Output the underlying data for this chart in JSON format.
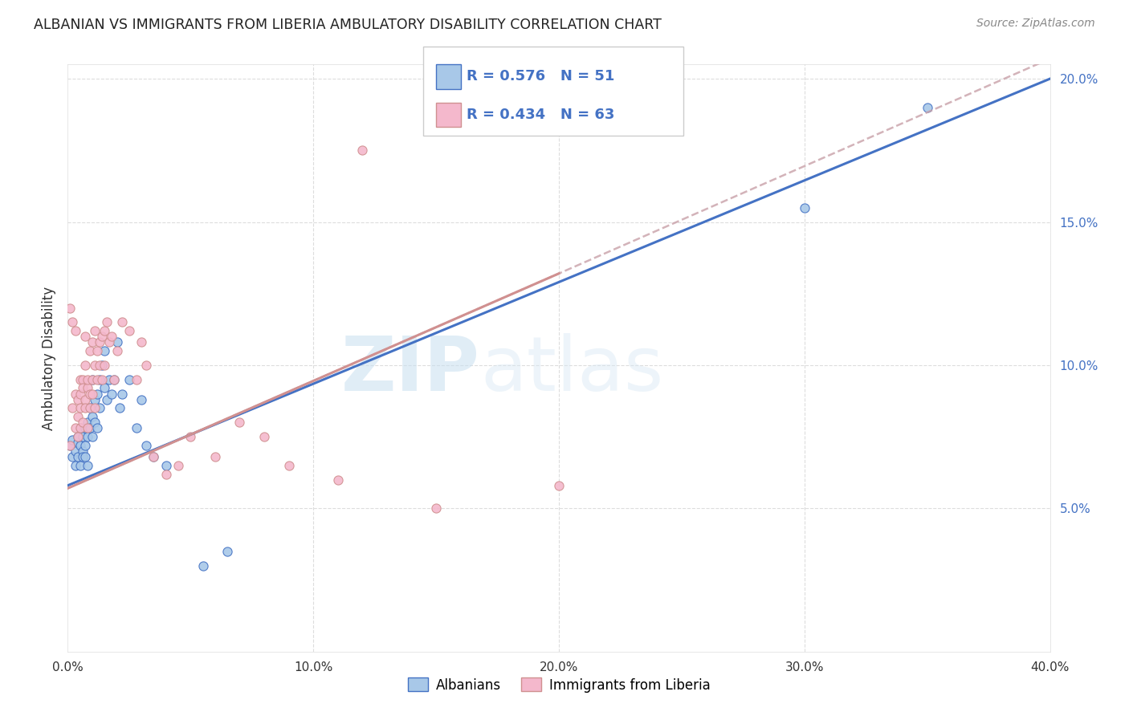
{
  "title": "ALBANIAN VS IMMIGRANTS FROM LIBERIA AMBULATORY DISABILITY CORRELATION CHART",
  "source": "Source: ZipAtlas.com",
  "xlabel_albanians": "Albanians",
  "xlabel_liberia": "Immigrants from Liberia",
  "ylabel": "Ambulatory Disability",
  "xlim": [
    0.0,
    0.4
  ],
  "ylim": [
    0.0,
    0.205
  ],
  "r_albanian": 0.576,
  "n_albanian": 51,
  "r_liberia": 0.434,
  "n_liberia": 63,
  "color_albanian": "#a8c8e8",
  "color_liberia": "#f4b8cc",
  "color_albanian_line": "#4472c4",
  "color_liberia_line": "#d09090",
  "line_albanian_slope": 0.355,
  "line_albanian_intercept": 0.058,
  "line_liberia_slope": 0.375,
  "line_liberia_intercept": 0.057,
  "watermark_zip": "ZIP",
  "watermark_atlas": "atlas",
  "albanian_x": [
    0.001,
    0.002,
    0.002,
    0.003,
    0.003,
    0.004,
    0.004,
    0.004,
    0.005,
    0.005,
    0.005,
    0.006,
    0.006,
    0.006,
    0.007,
    0.007,
    0.007,
    0.008,
    0.008,
    0.008,
    0.009,
    0.009,
    0.01,
    0.01,
    0.01,
    0.011,
    0.011,
    0.012,
    0.012,
    0.013,
    0.013,
    0.014,
    0.015,
    0.015,
    0.016,
    0.017,
    0.018,
    0.019,
    0.02,
    0.021,
    0.022,
    0.025,
    0.028,
    0.03,
    0.032,
    0.035,
    0.04,
    0.055,
    0.065,
    0.3,
    0.35
  ],
  "albanian_y": [
    0.072,
    0.068,
    0.074,
    0.07,
    0.065,
    0.073,
    0.068,
    0.075,
    0.072,
    0.065,
    0.078,
    0.075,
    0.07,
    0.068,
    0.078,
    0.072,
    0.068,
    0.08,
    0.075,
    0.065,
    0.085,
    0.078,
    0.082,
    0.095,
    0.075,
    0.088,
    0.08,
    0.09,
    0.078,
    0.095,
    0.085,
    0.1,
    0.092,
    0.105,
    0.088,
    0.095,
    0.09,
    0.095,
    0.108,
    0.085,
    0.09,
    0.095,
    0.078,
    0.088,
    0.072,
    0.068,
    0.065,
    0.03,
    0.035,
    0.155,
    0.19
  ],
  "liberia_x": [
    0.001,
    0.001,
    0.002,
    0.002,
    0.003,
    0.003,
    0.003,
    0.004,
    0.004,
    0.004,
    0.005,
    0.005,
    0.005,
    0.005,
    0.006,
    0.006,
    0.006,
    0.007,
    0.007,
    0.007,
    0.007,
    0.008,
    0.008,
    0.008,
    0.009,
    0.009,
    0.009,
    0.01,
    0.01,
    0.01,
    0.011,
    0.011,
    0.011,
    0.012,
    0.012,
    0.013,
    0.013,
    0.014,
    0.014,
    0.015,
    0.015,
    0.016,
    0.017,
    0.018,
    0.019,
    0.02,
    0.022,
    0.025,
    0.028,
    0.03,
    0.032,
    0.035,
    0.04,
    0.045,
    0.05,
    0.06,
    0.07,
    0.08,
    0.09,
    0.11,
    0.12,
    0.15,
    0.2
  ],
  "liberia_y": [
    0.072,
    0.12,
    0.085,
    0.115,
    0.078,
    0.112,
    0.09,
    0.082,
    0.088,
    0.075,
    0.085,
    0.095,
    0.09,
    0.078,
    0.095,
    0.092,
    0.08,
    0.088,
    0.1,
    0.085,
    0.11,
    0.092,
    0.095,
    0.078,
    0.09,
    0.105,
    0.085,
    0.095,
    0.108,
    0.09,
    0.1,
    0.112,
    0.085,
    0.105,
    0.095,
    0.108,
    0.1,
    0.11,
    0.095,
    0.112,
    0.1,
    0.115,
    0.108,
    0.11,
    0.095,
    0.105,
    0.115,
    0.112,
    0.095,
    0.108,
    0.1,
    0.068,
    0.062,
    0.065,
    0.075,
    0.068,
    0.08,
    0.075,
    0.065,
    0.06,
    0.175,
    0.05,
    0.058
  ]
}
